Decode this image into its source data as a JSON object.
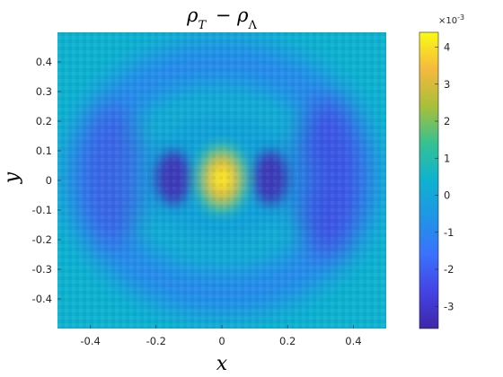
{
  "chart_data": {
    "type": "heatmap",
    "title": "ρ_T − ρ_Λ",
    "xlabel": "x",
    "ylabel": "y",
    "xlim": [
      -0.5,
      0.5
    ],
    "ylim": [
      -0.5,
      0.5
    ],
    "xticks": [
      "-0.4",
      "-0.2",
      "0",
      "0.2",
      "0.4"
    ],
    "yticks": [
      "0.4",
      "0.3",
      "0.2",
      "0.1",
      "0",
      "-0.1",
      "-0.2",
      "-0.3",
      "-0.4"
    ],
    "colorbar": {
      "clim": [
        -0.0036,
        0.0044
      ],
      "ticks": [
        "4",
        "3",
        "2",
        "1",
        "0",
        "-1",
        "-2",
        "-3"
      ],
      "exponent_label": "×10",
      "exponent": "-3"
    },
    "colormap": "parula",
    "background_level": 0.0,
    "features": [
      {
        "kind": "peak",
        "x": 0.0,
        "y": 0.0,
        "value": 0.0043
      },
      {
        "kind": "trough",
        "x": -0.15,
        "y": 0.0,
        "value": -0.0034
      },
      {
        "kind": "trough",
        "x": 0.15,
        "y": 0.0,
        "value": -0.0034
      },
      {
        "kind": "ring_min",
        "x": -0.33,
        "y": 0.05,
        "value": -0.0026
      },
      {
        "kind": "ring_min",
        "x": 0.33,
        "y": 0.0,
        "value": -0.003
      }
    ]
  }
}
